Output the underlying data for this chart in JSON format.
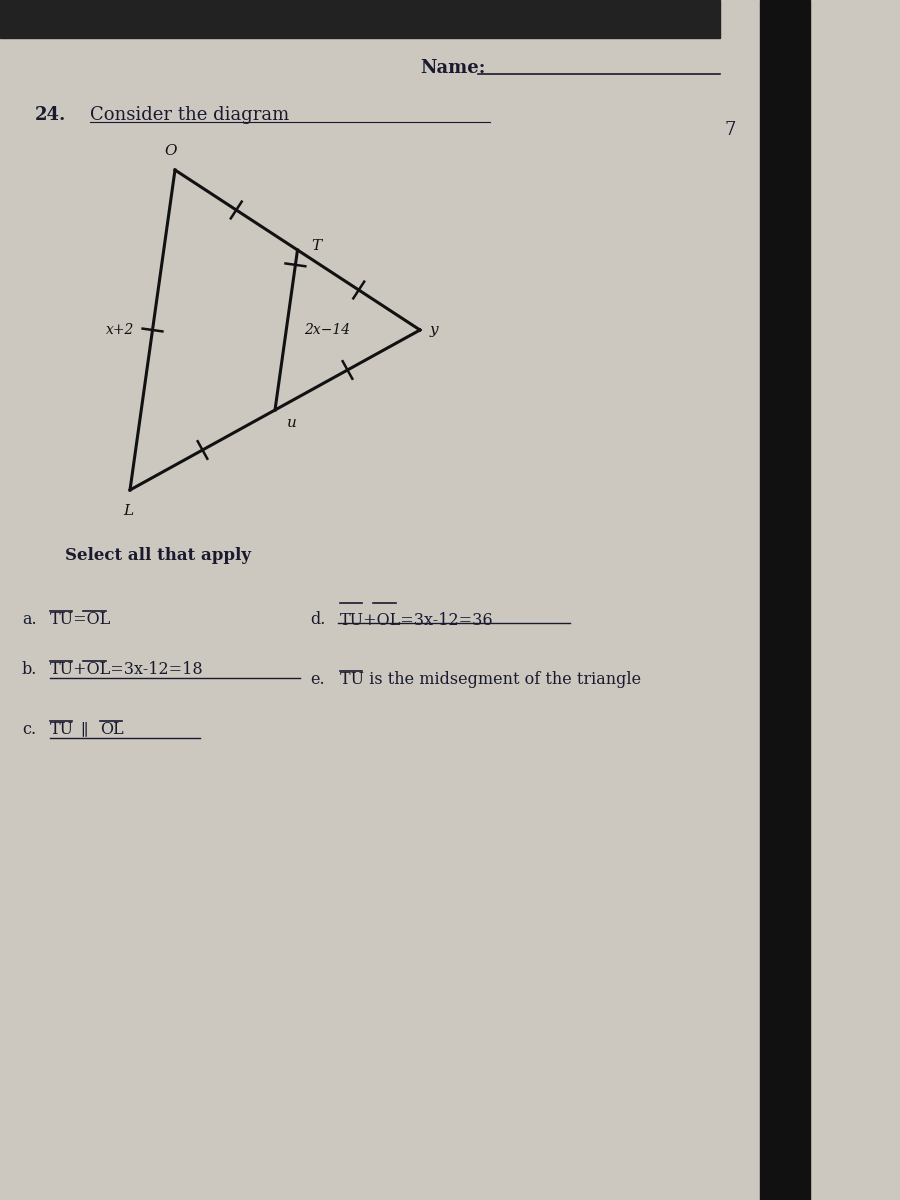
{
  "bg_color": "#ccc8c0",
  "header_bar_color": "#222222",
  "right_bar_color": "#111111",
  "font_color": "#1a1a2e",
  "line_color": "#111111",
  "name_label": "Name:",
  "problem_number": "24.",
  "problem_text": "Consider the diagram",
  "page_number": "7",
  "seg_label_TU": "2x-14",
  "seg_label_OL": "x+2",
  "select_text": "Select all that apply",
  "ans_a": "TU=OL",
  "ans_b": "TU+OL=3x-12=18",
  "ans_c_parallel": true,
  "ans_d": "TU+OL=3x-12=36",
  "ans_e": "TU is the midsegment of the triangle"
}
